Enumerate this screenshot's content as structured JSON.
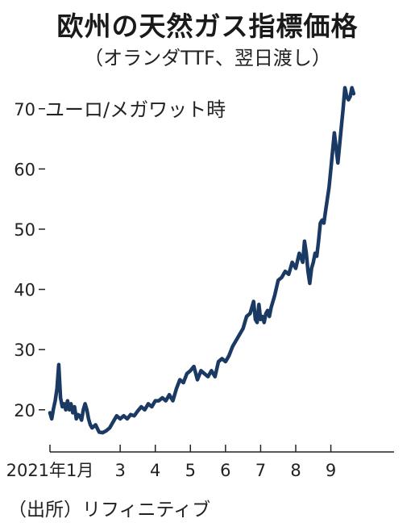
{
  "title": "欧州の天然ガス指標価格",
  "subtitle": "（オランダTTF、翌日渡し）",
  "unit": "ユーロ/メガワット時",
  "source": "（出所）リフィニティブ",
  "colors": {
    "line": "#1b3a63",
    "axis": "#222222"
  },
  "chart_data": {
    "type": "line",
    "title": "欧州の天然ガス指標価格",
    "subtitle": "（オランダTTF、翌日渡し）",
    "ylabel": "ユーロ/メガワット時",
    "xlabel": "",
    "ylim": [
      13,
      76
    ],
    "xlim": [
      1,
      10.8
    ],
    "yticks": [
      20,
      30,
      40,
      50,
      60,
      70
    ],
    "xtick_labels": [
      {
        "x": 1,
        "label": "2021年1月"
      },
      {
        "x": 3,
        "label": "3"
      },
      {
        "x": 4,
        "label": "4"
      },
      {
        "x": 5,
        "label": "5"
      },
      {
        "x": 6,
        "label": "6"
      },
      {
        "x": 7,
        "label": "7"
      },
      {
        "x": 8,
        "label": "8"
      },
      {
        "x": 9,
        "label": "9"
      }
    ],
    "grid": false,
    "legend": "none",
    "series": [
      {
        "x": [
          1.0,
          1.05,
          1.1,
          1.15,
          1.2,
          1.25,
          1.3,
          1.35,
          1.4,
          1.45,
          1.5,
          1.55,
          1.6,
          1.65,
          1.7,
          1.75,
          1.8,
          1.85,
          1.9,
          1.95,
          2.0,
          2.05,
          2.1,
          2.15,
          2.2,
          2.3,
          2.4,
          2.5,
          2.6,
          2.7,
          2.8,
          2.9,
          3.0,
          3.1,
          3.2,
          3.3,
          3.4,
          3.5,
          3.6,
          3.7,
          3.8,
          3.9,
          4.0,
          4.1,
          4.2,
          4.3,
          4.4,
          4.5,
          4.6,
          4.7,
          4.8,
          4.9,
          5.0,
          5.1,
          5.2,
          5.3,
          5.4,
          5.5,
          5.6,
          5.7,
          5.8,
          5.9,
          6.0,
          6.1,
          6.2,
          6.3,
          6.4,
          6.5,
          6.6,
          6.7,
          6.8,
          6.85,
          6.9,
          6.95,
          7.0,
          7.05,
          7.1,
          7.15,
          7.2,
          7.25,
          7.3,
          7.4,
          7.5,
          7.6,
          7.7,
          7.8,
          7.9,
          8.0,
          8.1,
          8.2,
          8.25,
          8.3,
          8.35,
          8.4,
          8.45,
          8.5,
          8.55,
          8.6,
          8.65,
          8.7,
          8.75,
          8.8,
          8.85,
          8.9,
          8.95,
          9.0,
          9.1,
          9.2,
          9.3,
          9.35,
          9.4,
          9.42,
          9.45,
          9.5,
          9.55,
          9.6,
          9.65
        ],
        "values": [
          19.5,
          18.5,
          20.2,
          21.5,
          23.5,
          27.5,
          22.0,
          20.5,
          21.0,
          20.0,
          21.5,
          20.0,
          21.0,
          19.5,
          20.5,
          18.5,
          19.2,
          19.0,
          18.3,
          20.0,
          21.0,
          20.0,
          18.5,
          17.5,
          17.0,
          17.5,
          16.3,
          16.2,
          16.5,
          17.0,
          18.0,
          19.0,
          18.5,
          19.0,
          18.5,
          19.2,
          19.0,
          19.8,
          20.5,
          20.0,
          21.0,
          20.5,
          21.5,
          21.5,
          22.0,
          21.5,
          22.5,
          21.5,
          23.5,
          25.0,
          24.5,
          26.0,
          26.5,
          27.2,
          25.0,
          26.5,
          26.0,
          25.5,
          26.5,
          25.5,
          28.0,
          28.5,
          28.0,
          29.0,
          30.5,
          31.5,
          32.5,
          33.5,
          35.5,
          36.0,
          38.0,
          35.0,
          34.5,
          37.5,
          35.0,
          35.5,
          34.5,
          36.0,
          36.5,
          35.5,
          37.0,
          39.0,
          41.5,
          42.0,
          43.0,
          42.5,
          44.5,
          43.5,
          46.0,
          44.5,
          48.0,
          46.0,
          43.0,
          41.0,
          43.5,
          44.5,
          46.0,
          45.5,
          48.0,
          51.0,
          51.5,
          51.0,
          53.0,
          55.0,
          57.0,
          60.0,
          66.0,
          61.0,
          67.0,
          70.0,
          73.5,
          73.0,
          72.0,
          71.5,
          72.0,
          73.5,
          72.5
        ]
      }
    ]
  }
}
